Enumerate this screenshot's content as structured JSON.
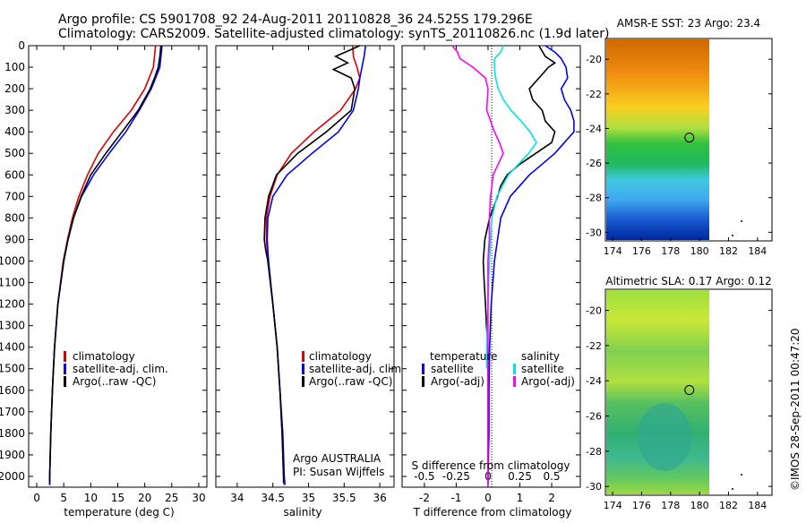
{
  "header": {
    "line1": "Argo profile: CS 5901708_92 24-Aug-2011 20110828_36 24.525S 179.296E",
    "line2": "Climatology: CARS2009. Satellite-adjusted climatology: synTS_20110826.nc (1.9d later)"
  },
  "side_label": "©IMOS 28-Sep-2011 00:47:20",
  "colors": {
    "climatology": "#e00000",
    "satellite": "#0000ff",
    "argo": "#000000",
    "salinity_satellite": "#00e5e5",
    "salinity_argo": "#ff00ff"
  },
  "chart_data": [
    {
      "id": "temperature",
      "type": "line",
      "xlabel": "temperature (deg C)",
      "ylabel": "",
      "xlim": [
        -1.5,
        31.5
      ],
      "ylim": [
        2050,
        0
      ],
      "xticks": [
        "0",
        "5",
        "10",
        "15",
        "20",
        "25",
        "30"
      ],
      "xtick_values": [
        0,
        5,
        10,
        15,
        20,
        25,
        30
      ],
      "yticks": [
        "0",
        "100",
        "200",
        "300",
        "400",
        "500",
        "600",
        "700",
        "800",
        "900",
        "1000",
        "1100",
        "1200",
        "1300",
        "1400",
        "1500",
        "1600",
        "1700",
        "1800",
        "1900",
        "2000"
      ],
      "ytick_values": [
        0,
        100,
        200,
        300,
        400,
        500,
        600,
        700,
        800,
        900,
        1000,
        1100,
        1200,
        1300,
        1400,
        1500,
        1600,
        1700,
        1800,
        1900,
        2000
      ],
      "legend": [
        "climatology",
        "satellite-adj. clim.",
        "Argo(..raw -QC)"
      ],
      "series": [
        {
          "name": "climatology",
          "color": "#e00000",
          "depth": [
            0,
            50,
            100,
            200,
            300,
            400,
            500,
            600,
            700,
            800,
            900,
            1000,
            1200,
            1400,
            1600,
            1800,
            2000,
            2040
          ],
          "x": [
            22,
            21.8,
            21.6,
            20,
            17.5,
            14.2,
            11.4,
            9.4,
            7.8,
            6.6,
            5.7,
            4.9,
            3.9,
            3.3,
            2.9,
            2.6,
            2.4,
            2.4
          ]
        },
        {
          "name": "satellite-adj. clim.",
          "color": "#0000ff",
          "depth": [
            0,
            50,
            100,
            200,
            300,
            400,
            500,
            600,
            700,
            800,
            900,
            1000,
            1200,
            1400,
            1600,
            1800,
            2000,
            2040
          ],
          "x": [
            23.2,
            23,
            22.8,
            21.2,
            19,
            16.5,
            13.4,
            10.5,
            8.3,
            6.8,
            5.8,
            5,
            3.9,
            3.3,
            2.9,
            2.6,
            2.4,
            2.4
          ]
        },
        {
          "name": "Argo(..raw -QC)",
          "color": "#000000",
          "depth": [
            0,
            50,
            100,
            150,
            200,
            300,
            400,
            500,
            600,
            700,
            800,
            900,
            1000,
            1200,
            1400,
            1600,
            1800,
            2000,
            2030
          ],
          "x": [
            23,
            22.8,
            22.5,
            21.8,
            21,
            18.8,
            15.8,
            12.8,
            10,
            8.2,
            6.8,
            5.8,
            5,
            3.9,
            3.3,
            2.9,
            2.6,
            2.4,
            2.4
          ]
        }
      ]
    },
    {
      "id": "salinity",
      "type": "line",
      "xlabel": "salinity",
      "ylabel": "",
      "xlim": [
        33.7,
        36.2
      ],
      "ylim": [
        2050,
        0
      ],
      "xticks": [
        "34",
        "34.5",
        "35",
        "35.5",
        "36"
      ],
      "xtick_values": [
        34,
        34.5,
        35,
        35.5,
        36
      ],
      "legend": [
        "climatology",
        "satellite-adj. clim.",
        "Argo(..raw -QC)"
      ],
      "annotation_lines": [
        "Argo AUSTRALIA",
        "PI: Susan Wijffels"
      ],
      "series": [
        {
          "name": "climatology",
          "color": "#e00000",
          "depth": [
            0,
            50,
            100,
            150,
            200,
            300,
            400,
            500,
            600,
            700,
            800,
            900,
            950,
            1000,
            1200,
            1400,
            1600,
            1800,
            2000,
            2040
          ],
          "x": [
            35.62,
            35.63,
            35.68,
            35.72,
            35.66,
            35.45,
            35.08,
            34.76,
            34.56,
            34.46,
            34.41,
            34.41,
            34.42,
            34.43,
            34.5,
            34.56,
            34.6,
            34.63,
            34.65,
            34.66
          ]
        },
        {
          "name": "satellite-adj. clim.",
          "color": "#0000ff",
          "depth": [
            0,
            50,
            100,
            150,
            200,
            300,
            400,
            500,
            600,
            700,
            800,
            900,
            1000,
            1200,
            1400,
            1600,
            1800,
            2000,
            2040
          ],
          "x": [
            35.8,
            35.78,
            35.75,
            35.72,
            35.7,
            35.63,
            35.42,
            35.05,
            34.7,
            34.5,
            34.43,
            34.42,
            34.44,
            34.5,
            34.56,
            34.6,
            34.64,
            34.66,
            34.67
          ]
        },
        {
          "name": "Argo(..raw -QC)",
          "color": "#000000",
          "depth": [
            0,
            50,
            80,
            110,
            150,
            200,
            300,
            400,
            500,
            600,
            700,
            800,
            900,
            950,
            1000,
            1200,
            1400,
            1600,
            1800,
            2000,
            2030
          ],
          "x": [
            35.72,
            35.38,
            35.55,
            35.35,
            35.6,
            35.65,
            35.6,
            35.25,
            34.85,
            34.55,
            34.44,
            34.39,
            34.38,
            34.4,
            34.43,
            34.5,
            34.56,
            34.6,
            34.63,
            34.65,
            34.65
          ]
        }
      ]
    },
    {
      "id": "difference",
      "type": "line",
      "xlabel": "T difference from climatology",
      "top_label": "S difference from climatology",
      "xlim": [
        -2.7,
        2.9
      ],
      "ylim": [
        2050,
        0
      ],
      "xticks": [
        "-2",
        "-1",
        "0",
        "1",
        "2"
      ],
      "xtick_values": [
        -2,
        -1,
        0,
        1,
        2
      ],
      "sticks": [
        "-0.5",
        "-0.25",
        "0",
        "0.25",
        "0.5"
      ],
      "stick_values": [
        -0.5,
        -0.25,
        0,
        0.25,
        0.5
      ],
      "legend_temperature": {
        "title": "temperature",
        "items": [
          "satellite",
          "Argo(-adj)"
        ]
      },
      "legend_salinity": {
        "title": "salinity",
        "items": [
          "satellite",
          "Argo(-adj)"
        ]
      },
      "series": [
        {
          "name": "temperature satellite",
          "color": "#0000ff",
          "depth": [
            0,
            30,
            60,
            100,
            150,
            200,
            250,
            300,
            350,
            400,
            450,
            500,
            550,
            600,
            650,
            700,
            800,
            900,
            1000,
            1200,
            1400,
            1600,
            1800,
            2000,
            2040
          ],
          "x": [
            1.8,
            2.1,
            2.3,
            2.45,
            2.5,
            2.3,
            2.4,
            2.6,
            2.7,
            2.7,
            2.4,
            2.1,
            1.7,
            1.3,
            1.0,
            0.7,
            0.4,
            0.3,
            0.2,
            0.1,
            0.05,
            0.03,
            0.03,
            0.0,
            0.0
          ]
        },
        {
          "name": "temperature Argo(-adj)",
          "color": "#000000",
          "depth": [
            0,
            50,
            80,
            100,
            150,
            200,
            250,
            300,
            350,
            400,
            450,
            500,
            550,
            600,
            650,
            700,
            800,
            900,
            1000,
            1100,
            1200,
            1300,
            1400,
            1600,
            1800,
            2000,
            2030
          ],
          "x": [
            1.6,
            1.8,
            2.1,
            1.9,
            1.6,
            1.3,
            1.4,
            1.7,
            1.8,
            2.1,
            2.0,
            1.5,
            1.0,
            0.6,
            0.4,
            0.3,
            0.05,
            -0.1,
            -0.15,
            -0.12,
            -0.08,
            -0.05,
            0.0,
            0.0,
            0.0,
            0.0,
            0.0
          ]
        },
        {
          "name": "salinity satellite",
          "color": "#00e5e5",
          "depth": [
            0,
            30,
            60,
            100,
            150,
            200,
            250,
            300,
            350,
            400,
            450,
            500,
            600,
            700,
            800,
            900,
            1000,
            1200,
            1400,
            1500
          ],
          "x": [
            0.12,
            0.1,
            0.05,
            0.05,
            0.06,
            0.08,
            0.12,
            0.18,
            0.26,
            0.33,
            0.38,
            0.32,
            0.16,
            0.07,
            0.03,
            0.02,
            0.01,
            0.0,
            -0.01,
            -0.01
          ]
        },
        {
          "name": "salinity Argo(-adj)",
          "color": "#ff00ff",
          "depth": [
            0,
            30,
            60,
            100,
            150,
            200,
            300,
            400,
            450,
            500,
            550,
            600,
            700,
            800,
            900,
            1000,
            1200,
            1400,
            2000,
            2040
          ],
          "x": [
            -0.28,
            -0.24,
            -0.22,
            -0.12,
            -0.02,
            0.0,
            -0.01,
            0.05,
            0.09,
            0.12,
            0.08,
            0.04,
            0.02,
            0.01,
            0.01,
            0.0,
            0.0,
            0.0,
            0.0,
            0.0
          ]
        }
      ]
    },
    {
      "id": "sst_map",
      "type": "heatmap",
      "title": "AMSR-E SST: 23 Argo: 23.4",
      "xlim": [
        173.5,
        185
      ],
      "ylim": [
        -30.5,
        -18.8
      ],
      "xticks": [
        "174",
        "176",
        "178",
        "180",
        "182",
        "184"
      ],
      "xtick_values": [
        174,
        176,
        178,
        180,
        182,
        184
      ],
      "yticks": [
        "-20",
        "-22",
        "-24",
        "-26",
        "-28",
        "-30"
      ],
      "ytick_values": [
        -20,
        -22,
        -24,
        -26,
        -28,
        -30
      ],
      "data_extent_lon": [
        173.5,
        180
      ],
      "argo_position": {
        "lon": 179.296,
        "lat": -24.525
      }
    },
    {
      "id": "sla_map",
      "type": "heatmap",
      "title": "Altimetric SLA: 0.17 Argo: 0.12",
      "xlim": [
        173.5,
        185
      ],
      "ylim": [
        -30.5,
        -18.8
      ],
      "xticks": [
        "174",
        "176",
        "178",
        "180",
        "182",
        "184"
      ],
      "xtick_values": [
        174,
        176,
        178,
        180,
        182,
        184
      ],
      "yticks": [
        "-20",
        "-22",
        "-24",
        "-26",
        "-28",
        "-30"
      ],
      "ytick_values": [
        -20,
        -22,
        -24,
        -26,
        -28,
        -30
      ],
      "data_extent_lon": [
        173.5,
        180
      ],
      "argo_position": {
        "lon": 179.296,
        "lat": -24.525
      }
    }
  ]
}
